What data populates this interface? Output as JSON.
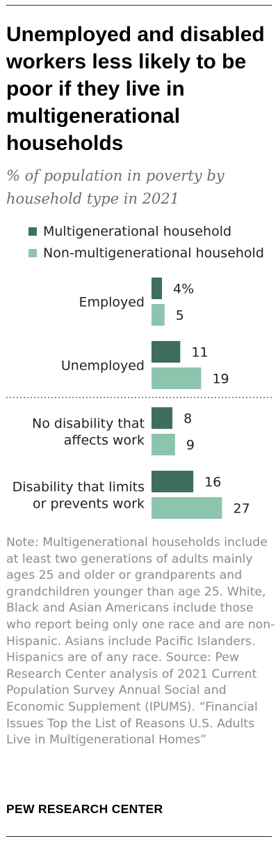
{
  "title": "Unemployed and disabled workers less likely to be poor if they live in multigenerational households",
  "subtitle": "% of population in poverty by household type in 2021",
  "chart_data": {
    "type": "bar",
    "orientation": "horizontal",
    "categories": [
      [
        "Employed"
      ],
      [
        "Unemployed"
      ],
      [
        "No disability that",
        "affects work"
      ],
      [
        "Disability that limits",
        "or prevents work"
      ]
    ],
    "series": [
      {
        "name": "Multigenerational household",
        "color": "#3f6e5e",
        "values": [
          4,
          11,
          8,
          16
        ],
        "labels": [
          "4%",
          "11",
          "8",
          "16"
        ]
      },
      {
        "name": "Non-multigenerational household",
        "color": "#8dc4ad",
        "values": [
          5,
          19,
          9,
          27
        ],
        "labels": [
          "5",
          "19",
          "9",
          "27"
        ]
      }
    ],
    "xlim": [
      0,
      30
    ],
    "grid": false,
    "separator_after_category_index": 1,
    "legend_position": "top-left"
  },
  "note": "Note: Multigenerational households include at least two generations of adults mainly ages 25 and older or grandparents and grandchildren younger than age 25. White, Black and Asian Americans include those who report being only one race and are non-Hispanic. Asians include Pacific Islanders. Hispanics are of any race.",
  "source": "Source: Pew Research Center analysis of 2021 Current Population Survey Annual Social and Economic Supplement (IPUMS).",
  "report_title": "“Financial Issues Top the List of Reasons U.S. Adults Live in Multigenerational Homes”",
  "organization": "PEW RESEARCH CENTER"
}
